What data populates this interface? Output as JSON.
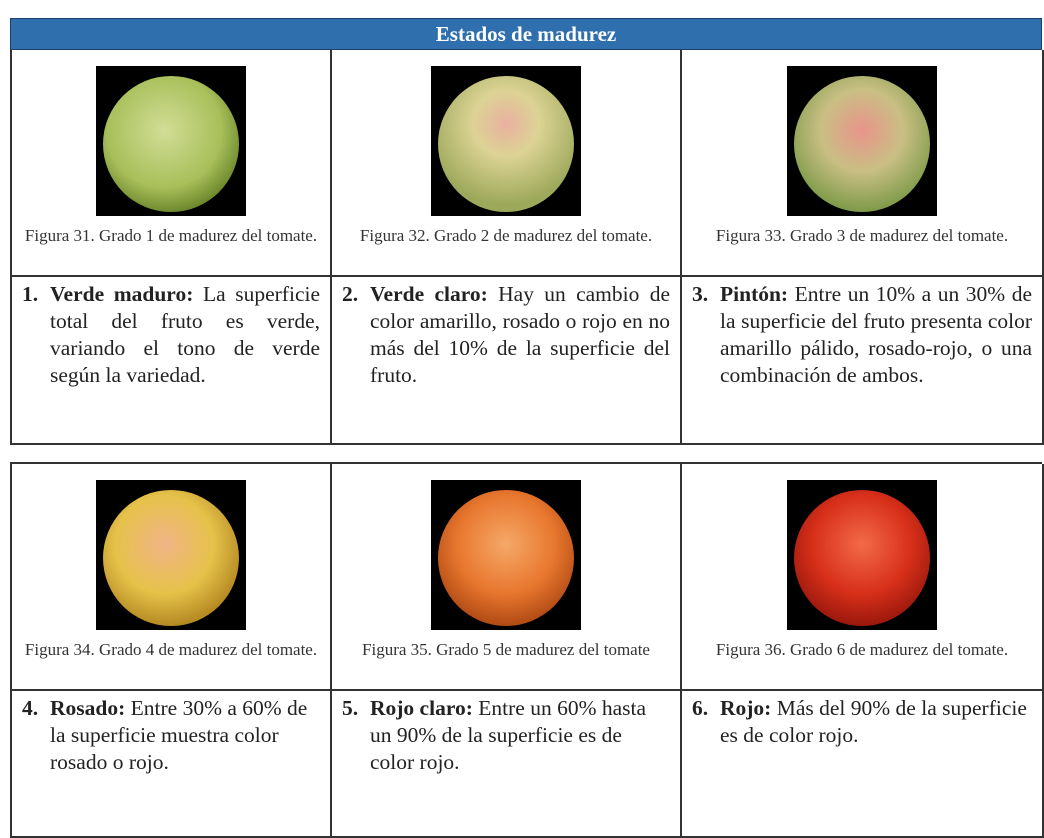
{
  "header": {
    "title": "Estados de madurez"
  },
  "stages": [
    {
      "caption": "Figura 31. Grado 1 de madurez del tomate.",
      "number": "1.",
      "term": "Verde maduro:",
      "text": " La superficie total del fruto es verde, variando el tono de verde según la variedad."
    },
    {
      "caption": "Figura 32. Grado 2 de madurez del tomate.",
      "number": "2.",
      "term": "Verde claro:",
      "text": " Hay un cambio de color amarillo, rosado o rojo en no más del 10% de la superficie del fruto."
    },
    {
      "caption": "Figura 33. Grado 3 de madurez del tomate.",
      "number": "3.",
      "term": "Pintón:",
      "text": " Entre un 10% a un 30% de la superficie del fruto presenta color amarillo pálido, rosado-rojo, o una combinación de ambos."
    },
    {
      "caption": "Figura 34. Grado 4 de madurez del tomate.",
      "number": "4.",
      "term": "Rosado:",
      "text": " Entre 30% a 60% de la superficie muestra color rosado o rojo."
    },
    {
      "caption": "Figura 35. Grado 5 de madurez del tomate",
      "number": "5.",
      "term": "Rojo claro:",
      "text": " Entre un 60% hasta un 90% de la superficie es de color rojo."
    },
    {
      "caption": "Figura 36. Grado 6 de madurez del tomate.",
      "number": "6.",
      "term": "Rojo:",
      "text": " Más del 90% de la superficie es de color rojo."
    }
  ]
}
